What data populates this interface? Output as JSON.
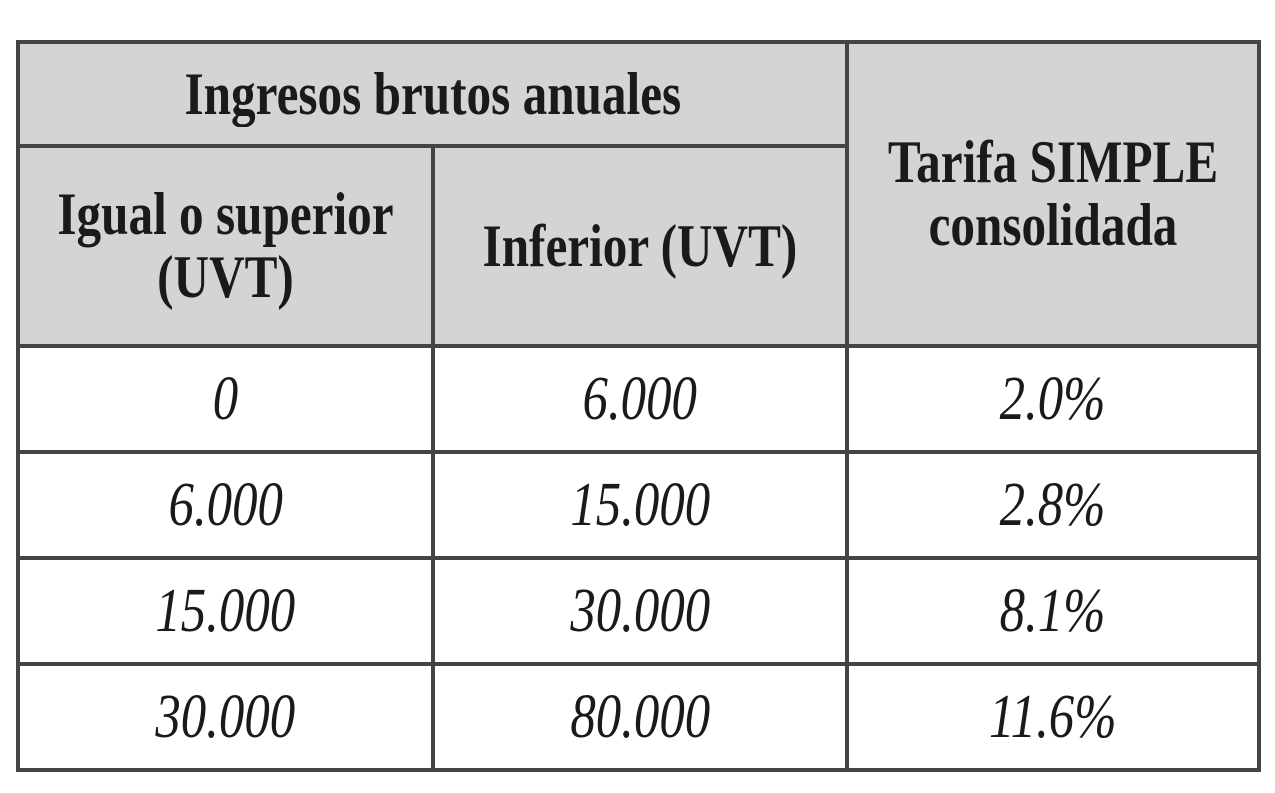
{
  "header": {
    "group_label": "Ingresos brutos anuales",
    "col_lower": "Igual o superior (UVT)",
    "col_upper": "Inferior (UVT)",
    "col_rate": "Tarifa SIMPLE consolidada"
  },
  "rows": [
    {
      "lower": "0",
      "upper": "6.000",
      "rate": "2.0%"
    },
    {
      "lower": "6.000",
      "upper": "15.000",
      "rate": "2.8%"
    },
    {
      "lower": "15.000",
      "upper": "30.000",
      "rate": "8.1%"
    },
    {
      "lower": "30.000",
      "upper": "80.000",
      "rate": "11.6%"
    }
  ]
}
